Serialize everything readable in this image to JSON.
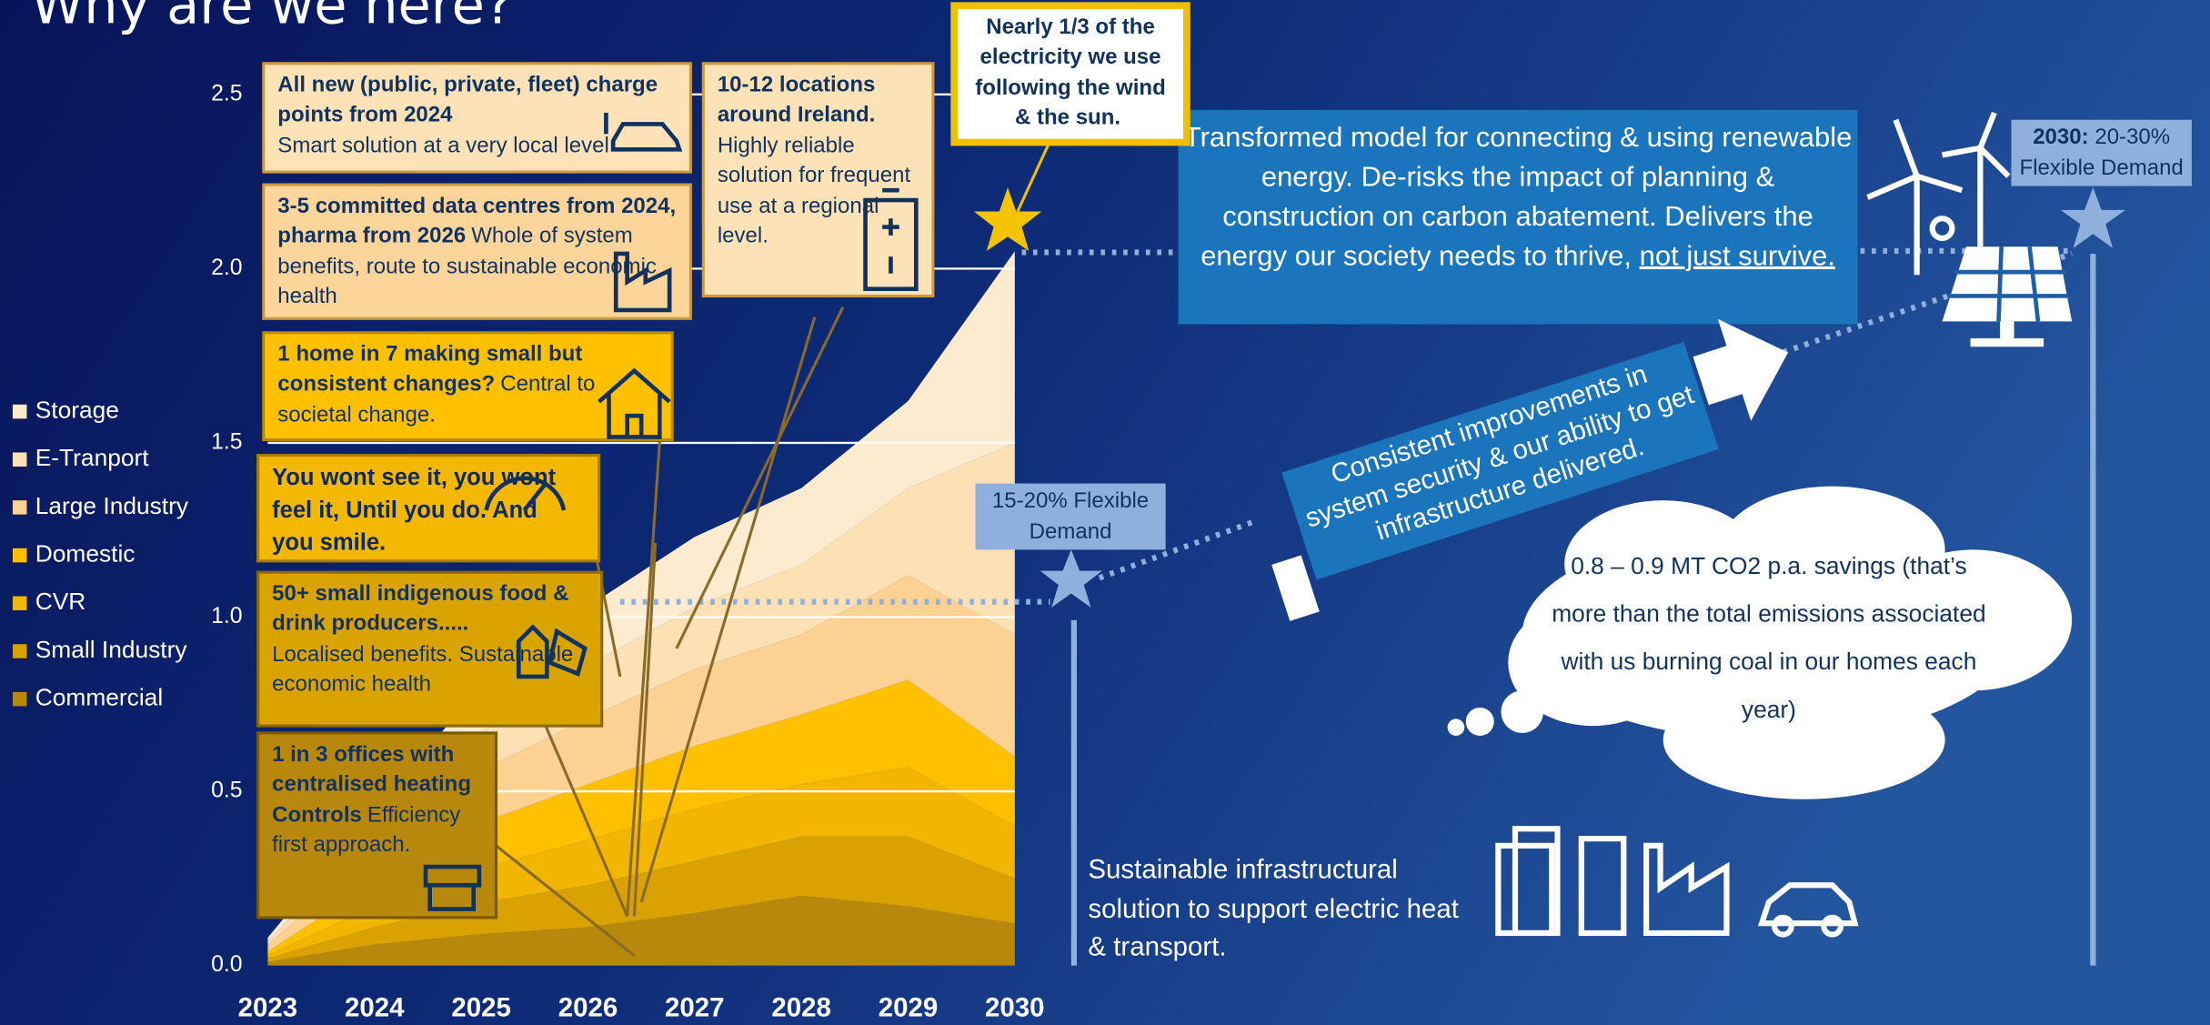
{
  "title": "Why are we here?",
  "chart_data": {
    "type": "area",
    "stacked": true,
    "categories": [
      "2023",
      "2024",
      "2025",
      "2026",
      "2027",
      "2028",
      "2029",
      "2030"
    ],
    "series": [
      {
        "name": "Storage",
        "color": "#fdebcf",
        "values": [
          0.01,
          0.07,
          0.13,
          0.17,
          0.2,
          0.22,
          0.25,
          0.55
        ]
      },
      {
        "name": "E-Tranport",
        "color": "#fde0b4",
        "values": [
          0.01,
          0.06,
          0.11,
          0.15,
          0.18,
          0.2,
          0.25,
          0.55
        ]
      },
      {
        "name": "Large Industry",
        "color": "#fdd191",
        "values": [
          0.02,
          0.08,
          0.15,
          0.19,
          0.22,
          0.23,
          0.3,
          0.35
        ]
      },
      {
        "name": "Domestic",
        "color": "#ffc000",
        "values": [
          0.01,
          0.07,
          0.13,
          0.16,
          0.18,
          0.2,
          0.25,
          0.2
        ]
      },
      {
        "name": "CVR",
        "color": "#f2b600",
        "values": [
          0.01,
          0.06,
          0.1,
          0.13,
          0.15,
          0.15,
          0.2,
          0.15
        ]
      },
      {
        "name": "Small Industry",
        "color": "#d9a200",
        "values": [
          0.01,
          0.05,
          0.09,
          0.12,
          0.15,
          0.17,
          0.2,
          0.13
        ]
      },
      {
        "name": "Commercial",
        "color": "#b8880c",
        "values": [
          0.01,
          0.06,
          0.09,
          0.11,
          0.15,
          0.2,
          0.17,
          0.12
        ]
      }
    ],
    "ylim": [
      0,
      2.5
    ],
    "yticks": [
      {
        "value": 0,
        "label": "0.0"
      },
      0.5,
      {
        "value": 1,
        "label": "1.0"
      },
      1.5,
      {
        "value": 2,
        "label": "2.0"
      },
      2.5
    ],
    "grid": true
  },
  "boxes": [
    {
      "bold": "All new (public, private, fleet) charge points from 2024",
      "text": "Smart solution at a very local level"
    },
    {
      "bold": "3-5 committed data centres from 2024, pharma from 2026",
      "text": "Whole of system benefits, route to sustainable economic health"
    },
    {
      "bold": "1 home in 7 making small but consistent changes?",
      "text": "Central to societal change."
    },
    {
      "bold": "You wont see it, you wont feel it, Until you do. And you smile."
    },
    {
      "bold": "50+ small indigenous food & drink producers.....",
      "text": "Localised benefits. Sustainable economic health"
    },
    {
      "bold": "1 in 3 offices with centralised heating Controls",
      "text": "Efficiency first approach."
    },
    {
      "bold": "10-12 locations around Ireland.",
      "text": "Highly reliable solution for frequent use at a regional level."
    },
    {
      "bold": "Nearly 1/3 of the electricity we use following the wind & the sun."
    }
  ],
  "model": "Transformed model for connecting & using renewable energy. De-risks the impact of planning & construction on carbon abatement. Delivers the energy our society needs to thrive,",
  "model_end": "not just survive.",
  "arrow_text": "Consistent improvements in system security & our ability to get infrastructure delivered.",
  "cloud": "0.8 – 0.9 MT CO2 p.a. savings (that’s more than the total emissions associated with us burning coal in our homes each year)",
  "flex_now": "15-20% Flexible Demand",
  "flex_2030_year": "2030:",
  "flex_2030": "20-30% Flexible Demand",
  "infra": "Sustainable infrastructural solution to support electric heat & transport."
}
